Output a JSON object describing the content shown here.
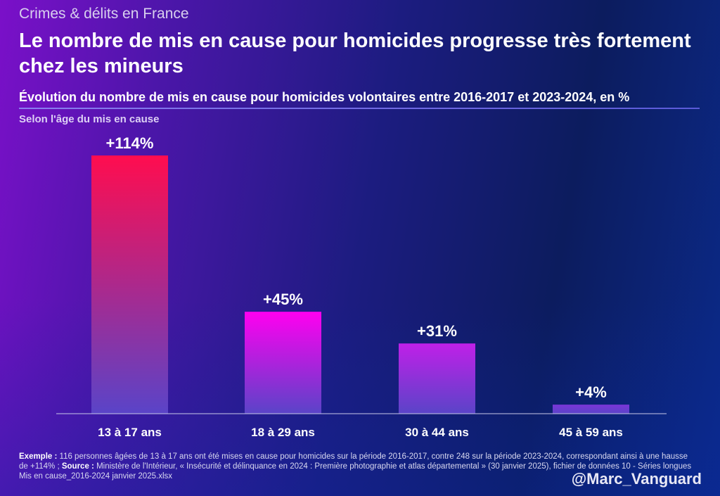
{
  "header": {
    "kicker": "Crimes & délits en France",
    "title": "Le nombre de mis en cause pour homicides progresse très fortement chez les mineurs"
  },
  "chart_data": {
    "type": "bar",
    "title": "Évolution du nombre de mis en cause pour homicides volontaires entre 2016-2017 et 2023-2024, en %",
    "subtitle": "Selon l'âge du mis en cause",
    "categories": [
      "13 à 17 ans",
      "18 à 29 ans",
      "30 à 44 ans",
      "45 à 59 ans"
    ],
    "values": [
      114,
      45,
      31,
      4
    ],
    "data_labels": [
      "+114%",
      "+45%",
      "+31%",
      "+4%"
    ],
    "ylim": [
      0,
      114
    ],
    "grid": false,
    "bar_top_colors": [
      "#ff0d4f",
      "#ff00f0",
      "#c020e8",
      "#7a35d8"
    ],
    "bar_bottom_color": "#5a44c8"
  },
  "footer": {
    "example_label": "Exemple :",
    "example_text": " 116 personnes âgées de 13 à 17 ans ont été mises en cause pour homicides sur la période 2016-2017, contre 248 sur la période 2023-2024, correspondant ainsi à une hausse de +114% ; ",
    "source_label": "Source :",
    "source_text": " Ministère de l'Intérieur, « Insécurité et délinquance en 2024 : Première photographie et atlas départemental » (30 janvier 2025), fichier de données 10 - Séries longues Mis en cause_2016-2024  janvier 2025.xlsx",
    "handle": "@Marc_Vanguard"
  }
}
